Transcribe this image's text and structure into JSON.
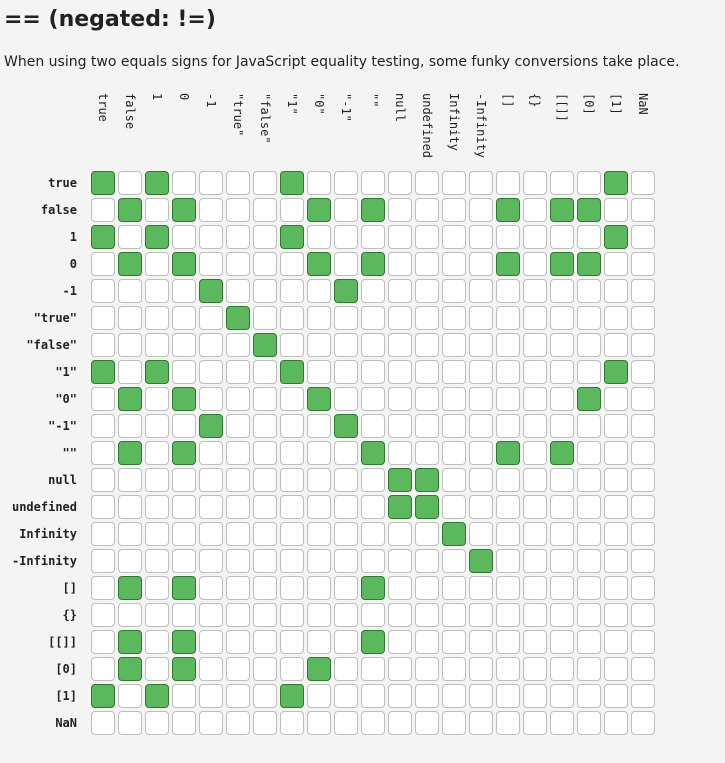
{
  "header": {
    "title": "== (negated: !=)",
    "description": "When using two equals signs for JavaScript equality testing, some funky conversions take place."
  },
  "colors": {
    "equal_fill": "#5cb85c",
    "equal_border": "#2f7a2f",
    "empty_fill": "#ffffff",
    "empty_border": "#bdbdbd",
    "background": "#f4f4f4"
  },
  "matrix": {
    "row_labels": [
      "true",
      "false",
      "1",
      "0",
      "-1",
      "\"true\"",
      "\"false\"",
      "\"1\"",
      "\"0\"",
      "\"-1\"",
      "\"\"",
      "null",
      "undefined",
      "Infinity",
      "-Infinity",
      "[]",
      "{}",
      "[[]]",
      "[0]",
      "[1]",
      "NaN"
    ],
    "col_labels": [
      "true",
      "false",
      "1",
      "0",
      "-1",
      "\"true\"",
      "\"false\"",
      "\"1\"",
      "\"0\"",
      "\"-1\"",
      "\"\"",
      "null",
      "undefined",
      "Infinity",
      "-Infinity",
      "[]",
      "{}",
      "[[]]",
      "[0]",
      "[1]",
      "NaN"
    ],
    "equal": [
      [
        1,
        0,
        1,
        0,
        0,
        0,
        0,
        1,
        0,
        0,
        0,
        0,
        0,
        0,
        0,
        0,
        0,
        0,
        0,
        1,
        0
      ],
      [
        0,
        1,
        0,
        1,
        0,
        0,
        0,
        0,
        1,
        0,
        1,
        0,
        0,
        0,
        0,
        1,
        0,
        1,
        1,
        0,
        0
      ],
      [
        1,
        0,
        1,
        0,
        0,
        0,
        0,
        1,
        0,
        0,
        0,
        0,
        0,
        0,
        0,
        0,
        0,
        0,
        0,
        1,
        0
      ],
      [
        0,
        1,
        0,
        1,
        0,
        0,
        0,
        0,
        1,
        0,
        1,
        0,
        0,
        0,
        0,
        1,
        0,
        1,
        1,
        0,
        0
      ],
      [
        0,
        0,
        0,
        0,
        1,
        0,
        0,
        0,
        0,
        1,
        0,
        0,
        0,
        0,
        0,
        0,
        0,
        0,
        0,
        0,
        0
      ],
      [
        0,
        0,
        0,
        0,
        0,
        1,
        0,
        0,
        0,
        0,
        0,
        0,
        0,
        0,
        0,
        0,
        0,
        0,
        0,
        0,
        0
      ],
      [
        0,
        0,
        0,
        0,
        0,
        0,
        1,
        0,
        0,
        0,
        0,
        0,
        0,
        0,
        0,
        0,
        0,
        0,
        0,
        0,
        0
      ],
      [
        1,
        0,
        1,
        0,
        0,
        0,
        0,
        1,
        0,
        0,
        0,
        0,
        0,
        0,
        0,
        0,
        0,
        0,
        0,
        1,
        0
      ],
      [
        0,
        1,
        0,
        1,
        0,
        0,
        0,
        0,
        1,
        0,
        0,
        0,
        0,
        0,
        0,
        0,
        0,
        0,
        1,
        0,
        0
      ],
      [
        0,
        0,
        0,
        0,
        1,
        0,
        0,
        0,
        0,
        1,
        0,
        0,
        0,
        0,
        0,
        0,
        0,
        0,
        0,
        0,
        0
      ],
      [
        0,
        1,
        0,
        1,
        0,
        0,
        0,
        0,
        0,
        0,
        1,
        0,
        0,
        0,
        0,
        1,
        0,
        1,
        0,
        0,
        0
      ],
      [
        0,
        0,
        0,
        0,
        0,
        0,
        0,
        0,
        0,
        0,
        0,
        1,
        1,
        0,
        0,
        0,
        0,
        0,
        0,
        0,
        0
      ],
      [
        0,
        0,
        0,
        0,
        0,
        0,
        0,
        0,
        0,
        0,
        0,
        1,
        1,
        0,
        0,
        0,
        0,
        0,
        0,
        0,
        0
      ],
      [
        0,
        0,
        0,
        0,
        0,
        0,
        0,
        0,
        0,
        0,
        0,
        0,
        0,
        1,
        0,
        0,
        0,
        0,
        0,
        0,
        0
      ],
      [
        0,
        0,
        0,
        0,
        0,
        0,
        0,
        0,
        0,
        0,
        0,
        0,
        0,
        0,
        1,
        0,
        0,
        0,
        0,
        0,
        0
      ],
      [
        0,
        1,
        0,
        1,
        0,
        0,
        0,
        0,
        0,
        0,
        1,
        0,
        0,
        0,
        0,
        0,
        0,
        0,
        0,
        0,
        0
      ],
      [
        0,
        0,
        0,
        0,
        0,
        0,
        0,
        0,
        0,
        0,
        0,
        0,
        0,
        0,
        0,
        0,
        0,
        0,
        0,
        0,
        0
      ],
      [
        0,
        1,
        0,
        1,
        0,
        0,
        0,
        0,
        0,
        0,
        1,
        0,
        0,
        0,
        0,
        0,
        0,
        0,
        0,
        0,
        0
      ],
      [
        0,
        1,
        0,
        1,
        0,
        0,
        0,
        0,
        1,
        0,
        0,
        0,
        0,
        0,
        0,
        0,
        0,
        0,
        0,
        0,
        0
      ],
      [
        1,
        0,
        1,
        0,
        0,
        0,
        0,
        1,
        0,
        0,
        0,
        0,
        0,
        0,
        0,
        0,
        0,
        0,
        0,
        0,
        0
      ],
      [
        0,
        0,
        0,
        0,
        0,
        0,
        0,
        0,
        0,
        0,
        0,
        0,
        0,
        0,
        0,
        0,
        0,
        0,
        0,
        0,
        0
      ]
    ]
  }
}
